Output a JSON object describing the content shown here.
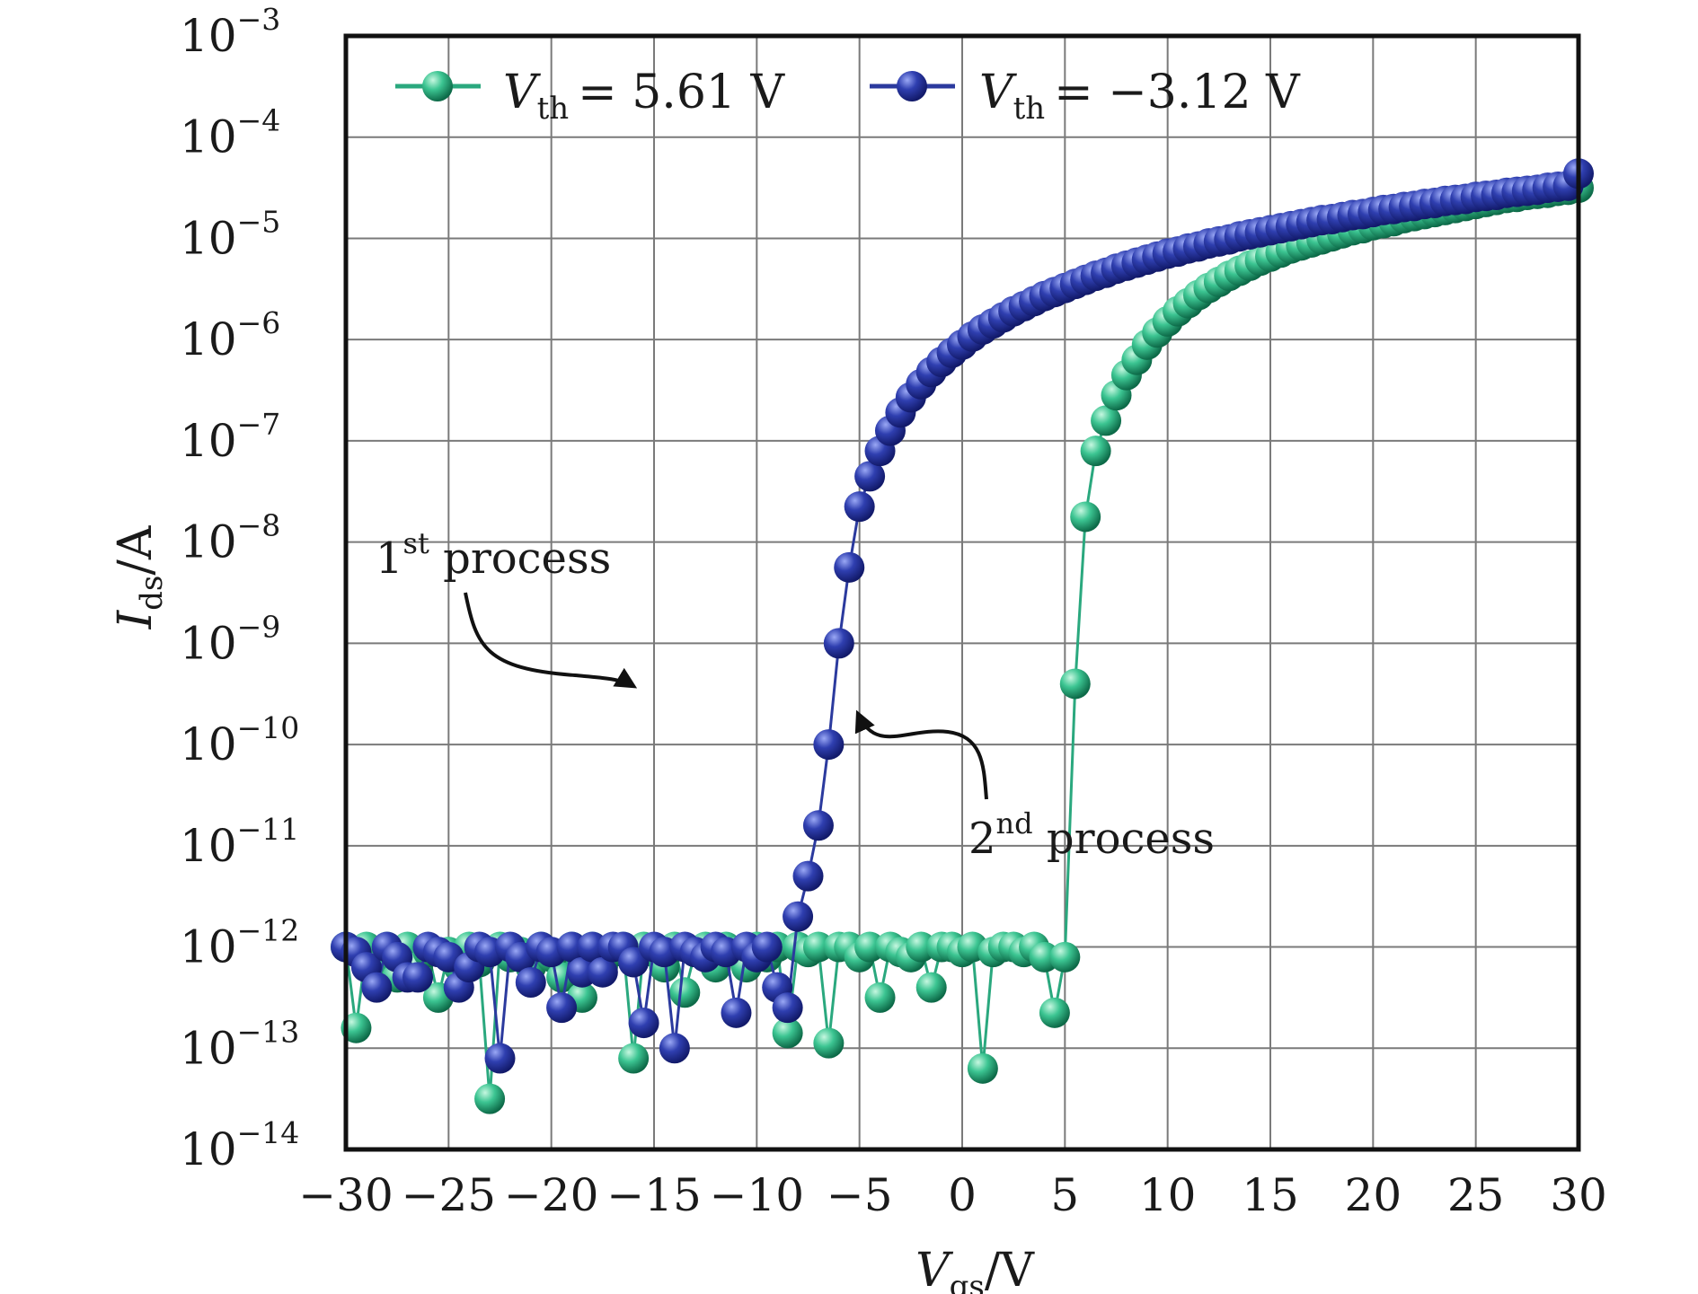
{
  "chart_data": {
    "type": "scatter",
    "title": "",
    "xlabel": "V_gs/V",
    "xlabel_main": "V",
    "xlabel_sub": "gs",
    "xlabel_unit": "/V",
    "ylabel": "I_ds/A",
    "ylabel_main": "I",
    "ylabel_sub": "ds",
    "ylabel_unit": "/A",
    "xlim": [
      -30,
      30
    ],
    "ylim_log10": [
      -14,
      -3
    ],
    "x_ticks": [
      -30,
      -25,
      -20,
      -15,
      -10,
      -5,
      0,
      5,
      10,
      15,
      20,
      25,
      30
    ],
    "x_tick_labels": [
      "−30",
      "−25",
      "−20",
      "−15",
      "−10",
      "−5",
      "0",
      "5",
      "10",
      "15",
      "20",
      "25",
      "30"
    ],
    "y_ticks_log10": [
      -14,
      -13,
      -12,
      -11,
      -10,
      -9,
      -8,
      -7,
      -6,
      -5,
      -4,
      -3
    ],
    "y_tick_base": "10",
    "y_tick_exponents": [
      "−14",
      "−13",
      "−12",
      "−11",
      "−10",
      "−9",
      "−8",
      "−7",
      "−6",
      "−5",
      "−4",
      "−3"
    ],
    "grid": true,
    "legend_position": "top",
    "series": [
      {
        "name": "Vth = 5.61 V",
        "legend_symbol": "V",
        "legend_sub": "th",
        "legend_value": "= 5.61 V",
        "color": "#2aa87e",
        "marker_light": "#b8f2d8",
        "marker_dark": "#0f7652",
        "x": [
          -30,
          -29.5,
          -29,
          -28.5,
          -28,
          -27.5,
          -27,
          -26.5,
          -26,
          -25.5,
          -25,
          -24.5,
          -24,
          -23.5,
          -23,
          -22.5,
          -22,
          -21.5,
          -21,
          -20.5,
          -20,
          -19.5,
          -19,
          -18.5,
          -18,
          -17.5,
          -17,
          -16.5,
          -16,
          -15.5,
          -15,
          -14.5,
          -14,
          -13.5,
          -13,
          -12.5,
          -12,
          -11.5,
          -11,
          -10.5,
          -10,
          -9.5,
          -9,
          -8.5,
          -8,
          -7.5,
          -7,
          -6.5,
          -6,
          -5.5,
          -5,
          -4.5,
          -4,
          -3.5,
          -3,
          -2.5,
          -2,
          -1.5,
          -1,
          -0.5,
          0,
          0.5,
          1,
          1.5,
          2,
          2.5,
          3,
          3.5,
          4,
          4.5,
          5,
          5.5,
          6,
          6.5,
          7,
          7.5,
          8,
          8.5,
          9,
          9.5,
          10,
          10.5,
          11,
          11.5,
          12,
          12.5,
          13,
          13.5,
          14,
          14.5,
          15,
          15.5,
          16,
          16.5,
          17,
          17.5,
          18,
          18.5,
          19,
          19.5,
          20,
          20.5,
          21,
          21.5,
          22,
          22.5,
          23,
          23.5,
          24,
          24.5,
          25,
          25.5,
          26,
          26.5,
          27,
          27.5,
          28,
          28.5,
          29,
          29.5,
          30
        ],
        "log10_y": [
          -12.0,
          -12.8,
          -12.0,
          -12.2,
          -12.0,
          -12.3,
          -12.0,
          -12.2,
          -12.05,
          -12.5,
          -12.05,
          -12.2,
          -12.0,
          -12.15,
          -13.5,
          -12.0,
          -12.1,
          -12.05,
          -12.2,
          -12.0,
          -12.1,
          -12.3,
          -12.0,
          -12.5,
          -12.0,
          -12.2,
          -12.05,
          -12.0,
          -13.1,
          -12.0,
          -12.05,
          -12.2,
          -12.0,
          -12.45,
          -12.05,
          -12.0,
          -12.2,
          -12.0,
          -12.05,
          -12.2,
          -12.0,
          -12.1,
          -12.0,
          -12.85,
          -12.0,
          -12.05,
          -12.0,
          -12.95,
          -12.0,
          -12.0,
          -12.1,
          -12.0,
          -12.5,
          -12.0,
          -12.05,
          -12.1,
          -12.0,
          -12.4,
          -12.0,
          -12.0,
          -12.05,
          -12.0,
          -13.2,
          -12.05,
          -12.0,
          -12.0,
          -12.05,
          -12.0,
          -12.1,
          -12.65,
          -12.1,
          -9.4,
          -7.75,
          -7.1,
          -6.8,
          -6.55,
          -6.35,
          -6.2,
          -6.05,
          -5.93,
          -5.82,
          -5.72,
          -5.64,
          -5.56,
          -5.49,
          -5.43,
          -5.37,
          -5.32,
          -5.27,
          -5.22,
          -5.18,
          -5.14,
          -5.1,
          -5.07,
          -5.04,
          -5.01,
          -4.98,
          -4.95,
          -4.92,
          -4.9,
          -4.87,
          -4.85,
          -4.83,
          -4.8,
          -4.78,
          -4.76,
          -4.74,
          -4.72,
          -4.7,
          -4.68,
          -4.66,
          -4.64,
          -4.62,
          -4.6,
          -4.59,
          -4.57,
          -4.56,
          -4.55,
          -4.53,
          -4.52,
          -4.5
        ]
      },
      {
        "name": "Vth = −3.12 V",
        "legend_symbol": "V",
        "legend_sub": "th",
        "legend_value": "= −3.12 V",
        "color": "#2b3a9e",
        "marker_light": "#8c9bf0",
        "marker_dark": "#16207a",
        "x": [
          -30,
          -29.5,
          -29,
          -28.5,
          -28,
          -27.5,
          -27,
          -26.5,
          -26,
          -25.5,
          -25,
          -24.5,
          -24,
          -23.5,
          -23,
          -22.5,
          -22,
          -21.5,
          -21,
          -20.5,
          -20,
          -19.5,
          -19,
          -18.5,
          -18,
          -17.5,
          -17,
          -16.5,
          -16,
          -15.5,
          -15,
          -14.5,
          -14,
          -13.5,
          -13,
          -12.5,
          -12,
          -11.5,
          -11,
          -10.5,
          -10,
          -9.5,
          -9,
          -8.5,
          -8,
          -7.5,
          -7,
          -6.5,
          -6,
          -5.5,
          -5,
          -4.5,
          -4,
          -3.5,
          -3,
          -2.5,
          -2,
          -1.5,
          -1,
          -0.5,
          0,
          0.5,
          1,
          1.5,
          2,
          2.5,
          3,
          3.5,
          4,
          4.5,
          5,
          5.5,
          6,
          6.5,
          7,
          7.5,
          8,
          8.5,
          9,
          9.5,
          10,
          10.5,
          11,
          11.5,
          12,
          12.5,
          13,
          13.5,
          14,
          14.5,
          15,
          15.5,
          16,
          16.5,
          17,
          17.5,
          18,
          18.5,
          19,
          19.5,
          20,
          20.5,
          21,
          21.5,
          22,
          22.5,
          23,
          23.5,
          24,
          24.5,
          25,
          25.5,
          26,
          26.5,
          27,
          27.5,
          28,
          28.5,
          29,
          29.5,
          30
        ],
        "log10_y": [
          -12.0,
          -12.05,
          -12.2,
          -12.4,
          -12.0,
          -12.1,
          -12.3,
          -12.3,
          -12.0,
          -12.05,
          -12.1,
          -12.4,
          -12.2,
          -12.0,
          -12.05,
          -13.1,
          -12.0,
          -12.1,
          -12.35,
          -12.0,
          -12.05,
          -12.6,
          -12.0,
          -12.25,
          -12.0,
          -12.25,
          -12.0,
          -12.0,
          -12.15,
          -12.75,
          -12.0,
          -12.05,
          -13.0,
          -12.0,
          -12.05,
          -12.1,
          -12.0,
          -12.05,
          -12.65,
          -12.0,
          -12.1,
          -12.0,
          -12.4,
          -12.6,
          -11.7,
          -11.3,
          -10.8,
          -10.0,
          -9.0,
          -8.25,
          -7.65,
          -7.35,
          -7.1,
          -6.9,
          -6.72,
          -6.57,
          -6.44,
          -6.32,
          -6.22,
          -6.13,
          -6.05,
          -5.97,
          -5.9,
          -5.84,
          -5.78,
          -5.72,
          -5.67,
          -5.62,
          -5.57,
          -5.53,
          -5.49,
          -5.45,
          -5.41,
          -5.37,
          -5.34,
          -5.3,
          -5.27,
          -5.24,
          -5.21,
          -5.18,
          -5.15,
          -5.13,
          -5.1,
          -5.08,
          -5.05,
          -5.03,
          -5.01,
          -4.98,
          -4.96,
          -4.94,
          -4.92,
          -4.9,
          -4.88,
          -4.86,
          -4.84,
          -4.82,
          -4.81,
          -4.79,
          -4.77,
          -4.76,
          -4.74,
          -4.72,
          -4.71,
          -4.69,
          -4.68,
          -4.66,
          -4.65,
          -4.63,
          -4.62,
          -4.61,
          -4.59,
          -4.58,
          -4.57,
          -4.55,
          -4.54,
          -4.53,
          -4.52,
          -4.5,
          -4.49,
          -4.48,
          -4.36
        ]
      }
    ],
    "annotations": [
      {
        "name": "first-process",
        "base": "1",
        "sup": "st",
        "text": " process"
      },
      {
        "name": "second-process",
        "base": "2",
        "sup": "nd",
        "text": " process"
      }
    ]
  }
}
